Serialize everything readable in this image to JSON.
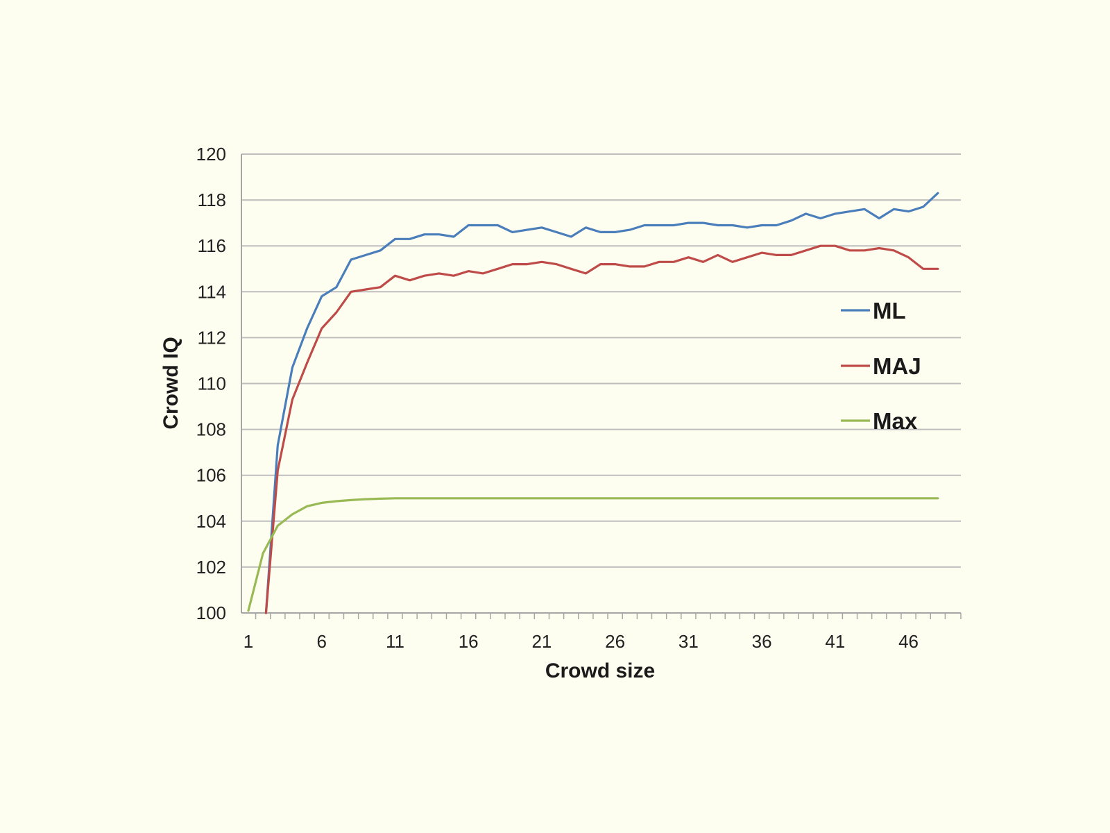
{
  "chart_data": {
    "type": "line",
    "title": "",
    "xlabel": "Crowd size",
    "ylabel": "Crowd IQ",
    "xlim": [
      1,
      49
    ],
    "ylim": [
      100,
      120
    ],
    "yticks": [
      100,
      102,
      104,
      106,
      108,
      110,
      112,
      114,
      116,
      118,
      120
    ],
    "yticklabels": [
      "100",
      "102",
      "104",
      "106",
      "108",
      "110",
      "112",
      "114",
      "116",
      "118",
      "120"
    ],
    "xticks": [
      1,
      6,
      11,
      16,
      21,
      26,
      31,
      36,
      41,
      46
    ],
    "xticklabels": [
      "1",
      "6",
      "11",
      "16",
      "21",
      "26",
      "31",
      "36",
      "41",
      "46"
    ],
    "grid": true,
    "legend_position": "right",
    "background": "#FEFEF0",
    "series": [
      {
        "name": "ML",
        "color": "#4A7EBB",
        "x": [
          2.2,
          3,
          4,
          5,
          6,
          7,
          8,
          9,
          10,
          11,
          12,
          13,
          14,
          15,
          16,
          17,
          18,
          19,
          20,
          21,
          22,
          23,
          24,
          25,
          26,
          27,
          28,
          29,
          30,
          31,
          32,
          33,
          34,
          35,
          36,
          37,
          38,
          39,
          40,
          41,
          42,
          43,
          44,
          45,
          46,
          47,
          48
        ],
        "values": [
          100,
          107.3,
          110.7,
          112.4,
          113.8,
          114.2,
          115.4,
          115.6,
          115.8,
          116.3,
          116.3,
          116.5,
          116.5,
          116.4,
          116.9,
          116.9,
          116.9,
          116.6,
          116.7,
          116.8,
          116.6,
          116.4,
          116.8,
          116.6,
          116.6,
          116.7,
          116.9,
          116.9,
          116.9,
          117.0,
          117.0,
          116.9,
          116.9,
          116.8,
          116.9,
          116.9,
          117.1,
          117.4,
          117.2,
          117.4,
          117.5,
          117.6,
          117.2,
          117.6,
          117.5,
          117.7,
          118.3
        ]
      },
      {
        "name": "MAJ",
        "color": "#BE4B48",
        "x": [
          2.2,
          3,
          4,
          5,
          6,
          7,
          8,
          9,
          10,
          11,
          12,
          13,
          14,
          15,
          16,
          17,
          18,
          19,
          20,
          21,
          22,
          23,
          24,
          25,
          26,
          27,
          28,
          29,
          30,
          31,
          32,
          33,
          34,
          35,
          36,
          37,
          38,
          39,
          40,
          41,
          42,
          43,
          44,
          45,
          46,
          47,
          48
        ],
        "values": [
          100,
          106.2,
          109.3,
          110.9,
          112.4,
          113.1,
          114.0,
          114.1,
          114.2,
          114.7,
          114.5,
          114.7,
          114.8,
          114.7,
          114.9,
          114.8,
          115.0,
          115.2,
          115.2,
          115.3,
          115.2,
          115.0,
          114.8,
          115.2,
          115.2,
          115.1,
          115.1,
          115.3,
          115.3,
          115.5,
          115.3,
          115.6,
          115.3,
          115.5,
          115.7,
          115.6,
          115.6,
          115.8,
          116.0,
          116.0,
          115.8,
          115.8,
          115.9,
          115.8,
          115.5,
          115.0,
          115.0
        ]
      },
      {
        "name": "Max",
        "color": "#98B954",
        "x": [
          1,
          2,
          3,
          4,
          5,
          6,
          7,
          8,
          9,
          10,
          11,
          12,
          13,
          14,
          15,
          16,
          17,
          18,
          19,
          20,
          21,
          22,
          23,
          24,
          25,
          26,
          27,
          28,
          29,
          30,
          31,
          32,
          33,
          34,
          35,
          36,
          37,
          38,
          39,
          40,
          41,
          42,
          43,
          44,
          45,
          46,
          47,
          48
        ],
        "values": [
          100.1,
          102.6,
          103.8,
          104.3,
          104.65,
          104.8,
          104.87,
          104.92,
          104.96,
          104.98,
          105,
          105,
          105,
          105,
          105,
          105,
          105,
          105,
          105,
          105,
          105,
          105,
          105,
          105,
          105,
          105,
          105,
          105,
          105,
          105,
          105,
          105,
          105,
          105,
          105,
          105,
          105,
          105,
          105,
          105,
          105,
          105,
          105,
          105,
          105,
          105,
          105,
          105
        ]
      }
    ]
  }
}
